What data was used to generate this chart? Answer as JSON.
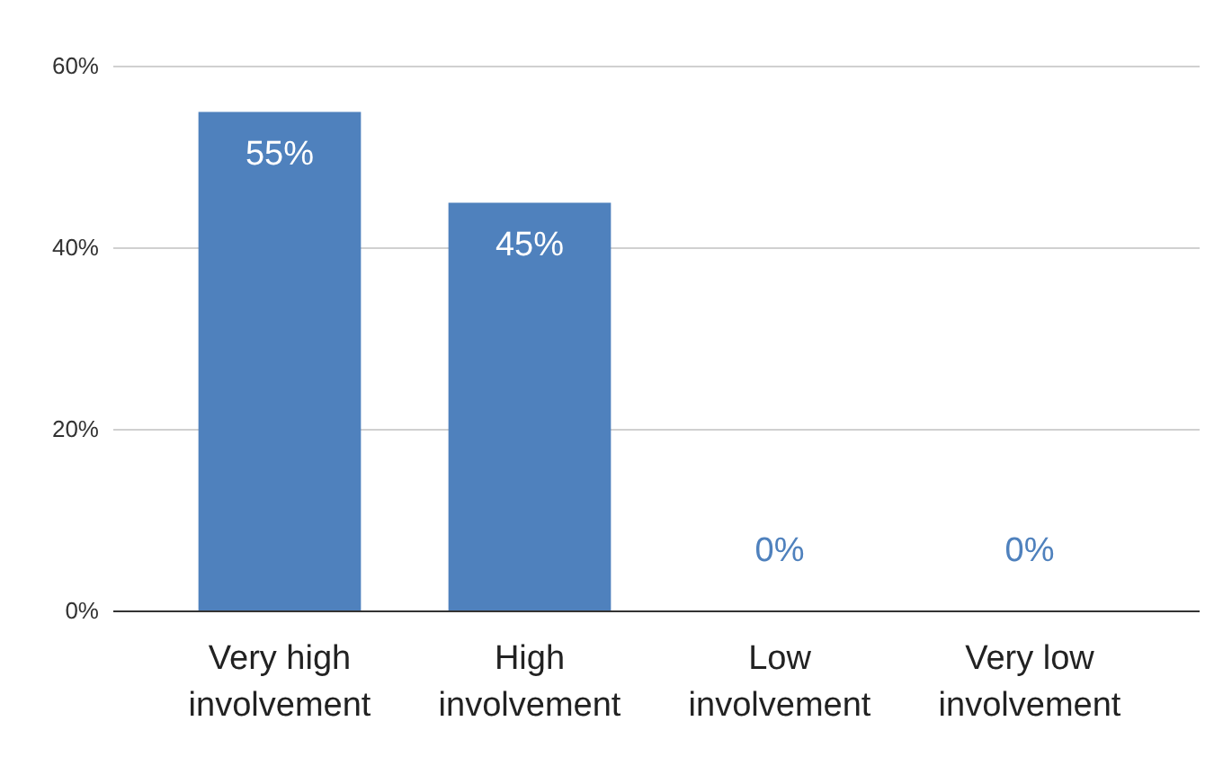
{
  "chart_data": {
    "type": "bar",
    "categories": [
      "Very high involvement",
      "High involvement",
      "Low involvement",
      "Very low involvement"
    ],
    "values": [
      55,
      45,
      0,
      0
    ],
    "color": "#4f81bd",
    "value_labels": [
      "55%",
      "45%",
      "0%",
      "0%"
    ],
    "ylim": [
      0,
      60
    ],
    "yticks": [
      {
        "value": 0,
        "label": "0%"
      },
      {
        "value": 20,
        "label": "20%"
      },
      {
        "value": 40,
        "label": "40%"
      },
      {
        "value": 60,
        "label": "60%"
      }
    ],
    "grid": "y"
  }
}
